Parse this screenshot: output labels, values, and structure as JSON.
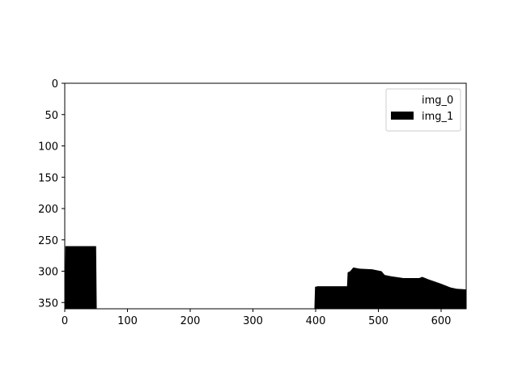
{
  "chart_data": {
    "type": "area",
    "xlim": [
      0,
      640
    ],
    "ylim": [
      360,
      0
    ],
    "y_inverted": true,
    "xticks": [
      0,
      100,
      200,
      300,
      400,
      500,
      600
    ],
    "yticks": [
      0,
      50,
      100,
      150,
      200,
      250,
      300,
      350
    ],
    "grid": false,
    "legend_position": "top-right",
    "series": [
      {
        "name": "img_0",
        "color": "#ffffff",
        "x": [
          0,
          640
        ],
        "y": [
          360,
          360
        ]
      },
      {
        "name": "img_1",
        "color": "#000000",
        "x": [
          0,
          1,
          50,
          51,
          398,
          399,
          403,
          420,
          435,
          450,
          451,
          455,
          460,
          470,
          490,
          505,
          510,
          520,
          540,
          565,
          570,
          580,
          600,
          615,
          625,
          640
        ],
        "y": [
          360,
          260,
          260,
          360,
          360,
          325,
          324,
          324,
          324,
          324,
          302,
          300,
          294,
          296,
          297,
          300,
          306,
          308,
          311,
          311,
          309,
          313,
          320,
          326,
          328,
          329
        ]
      }
    ]
  }
}
